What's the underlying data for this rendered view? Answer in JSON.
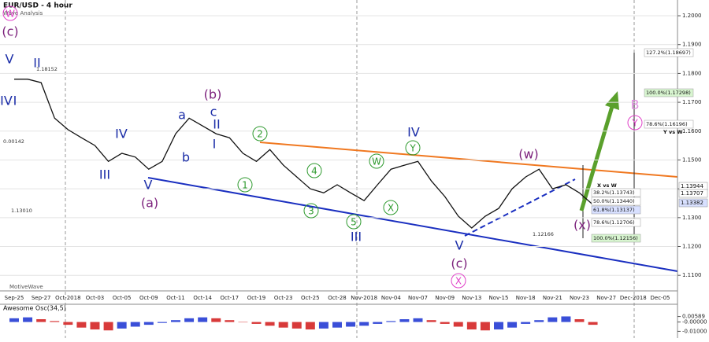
{
  "chart_data": [
    {
      "type": "line",
      "title": "EUR/USD - 4 hour",
      "subtitle": "Wave Analysis",
      "source": "MotiveWave",
      "categories": [
        "Sep-25",
        null,
        "Sep-27",
        null,
        "Oct-2018",
        null,
        "Oct-03",
        null,
        "Oct-05",
        null,
        "Oct-09",
        null,
        "Oct-11",
        null,
        "Oct-14",
        null,
        "Oct-17",
        null,
        "Oct-19",
        null,
        "Oct-23",
        null,
        "Oct-25",
        null,
        "Oct-28",
        null,
        "Nov-2018",
        null,
        "Nov-04",
        null,
        "Nov-07",
        null,
        "Nov-09",
        null,
        "Nov-13",
        null,
        "Nov-15",
        null,
        "Nov-18",
        null,
        "Nov-21",
        null,
        "Nov-23",
        null,
        "Nov-27",
        null,
        "Dec-2018",
        null,
        "Dec-05"
      ],
      "values": [
        1.178,
        1.178,
        1.1768,
        1.1645,
        1.1605,
        1.1577,
        1.155,
        1.1495,
        1.1523,
        1.151,
        1.1468,
        1.1495,
        1.1591,
        1.1645,
        1.1618,
        1.1591,
        1.1577,
        1.1523,
        1.1495,
        1.1536,
        1.1482,
        1.1441,
        1.14,
        1.1386,
        1.1414,
        1.1386,
        1.1359,
        1.1414,
        1.1468,
        1.1482,
        1.1495,
        1.1427,
        1.1373,
        1.1305,
        1.1264,
        1.1305,
        1.1332,
        1.14,
        1.1441,
        1.1468,
        1.14,
        1.1414,
        1.1386,
        1.1345,
        null,
        null,
        null,
        null,
        null
      ],
      "color": "#111111",
      "ylim": [
        1.1046,
        1.2041
      ],
      "yticks": [
        {
          "value": 1.2,
          "label": "1.2000"
        },
        {
          "value": 1.19,
          "label": "1.1900"
        },
        {
          "value": 1.18,
          "label": "1.1800"
        },
        {
          "value": 1.17,
          "label": "1.1700"
        },
        {
          "value": 1.16,
          "label": "1.1600"
        },
        {
          "value": 1.15,
          "label": "1.1500"
        },
        {
          "value": 1.14,
          "label": "1.1400"
        },
        {
          "value": 1.13,
          "label": "1.1300"
        },
        {
          "value": 1.12,
          "label": "1.1200"
        },
        {
          "value": 1.11,
          "label": "1.1100"
        }
      ],
      "grid": true,
      "annotations": [
        {
          "text": "(c)",
          "color": "#7b1f7b"
        },
        {
          "text": "V",
          "color": "#1c2ea8"
        },
        {
          "text": "W",
          "color": "#e040c8"
        },
        {
          "text": "II",
          "color": "#1c2ea8"
        },
        {
          "text": "IV",
          "color": "#1c2ea8"
        },
        {
          "text": "I",
          "color": "#1c2ea8"
        },
        {
          "text": "III",
          "color": "#1c2ea8"
        },
        {
          "text": "IV",
          "color": "#1c2ea8"
        },
        {
          "text": "V",
          "color": "#1c2ea8"
        },
        {
          "text": "(a)",
          "color": "#7b1f7b"
        },
        {
          "text": "a",
          "color": "#1c2ea8"
        },
        {
          "text": "b",
          "color": "#1c2ea8"
        },
        {
          "text": "c",
          "color": "#1c2ea8"
        },
        {
          "text": "II",
          "color": "#1c2ea8"
        },
        {
          "text": "I",
          "color": "#1c2ea8"
        },
        {
          "text": "(b)",
          "color": "#7b1f7b"
        },
        {
          "text": "1",
          "color": "#2e9a2e"
        },
        {
          "text": "2",
          "color": "#2e9a2e"
        },
        {
          "text": "3",
          "color": "#2e9a2e"
        },
        {
          "text": "4",
          "color": "#2e9a2e"
        },
        {
          "text": "5",
          "color": "#2e9a2e"
        },
        {
          "text": "III",
          "color": "#1c2ea8"
        },
        {
          "text": "W",
          "color": "#2e9a2e"
        },
        {
          "text": "X",
          "color": "#2e9a2e"
        },
        {
          "text": "Y",
          "color": "#2e9a2e"
        },
        {
          "text": "IV",
          "color": "#1c2ea8"
        },
        {
          "text": "V",
          "color": "#1c2ea8"
        },
        {
          "text": "(c)",
          "color": "#7b1f7b"
        },
        {
          "text": "X",
          "color": "#e040c8"
        },
        {
          "text": "(w)",
          "color": "#7b1f7b"
        },
        {
          "text": "(x)",
          "color": "#7b1f7b"
        },
        {
          "text": "B",
          "color": "#e08ee0"
        },
        {
          "text": "Y",
          "color": "#e040c8"
        }
      ],
      "fib_labels": [
        "127.2%(1.18697)",
        "100.0%(1.17298)",
        "78.6%(1.16196)",
        "Y vs W",
        "X vs W",
        "38.2%(1.13743)",
        "50.0%(1.13440)",
        "61.8%(1.13137)",
        "78.6%(1.12706)",
        "100.0%(1.12156)"
      ],
      "price_labels": [
        "1.18152",
        "0.00142",
        "1.13010",
        "1.12166"
      ],
      "axis_price_labels": [
        "1.13944",
        "1.13707",
        "1.13382"
      ]
    },
    {
      "type": "bar",
      "title": "Awesome Osc(34,5)",
      "values": [
        0.004,
        0.005,
        0.003,
        0.001,
        -0.003,
        -0.006,
        -0.008,
        -0.009,
        -0.007,
        -0.005,
        -0.003,
        -0.001,
        0.002,
        0.004,
        0.005,
        0.004,
        0.002,
        0.0,
        -0.002,
        -0.004,
        -0.006,
        -0.007,
        -0.008,
        -0.007,
        -0.006,
        -0.005,
        -0.004,
        -0.002,
        0.001,
        0.003,
        0.004,
        0.002,
        -0.002,
        -0.005,
        -0.008,
        -0.009,
        -0.008,
        -0.006,
        -0.002,
        0.002,
        0.005,
        0.006,
        0.003,
        -0.003,
        null,
        null,
        null,
        null,
        null
      ],
      "up_color": "#3a4fd8",
      "down_color": "#d83a3a",
      "ylim": [
        -0.0164,
        0.0182
      ],
      "yticks": [
        {
          "value": 0.00589,
          "label": "0.00589"
        },
        {
          "value": 0,
          "label": "-0.00000"
        },
        {
          "value": -0.01,
          "label": "-0.01000"
        }
      ]
    }
  ]
}
